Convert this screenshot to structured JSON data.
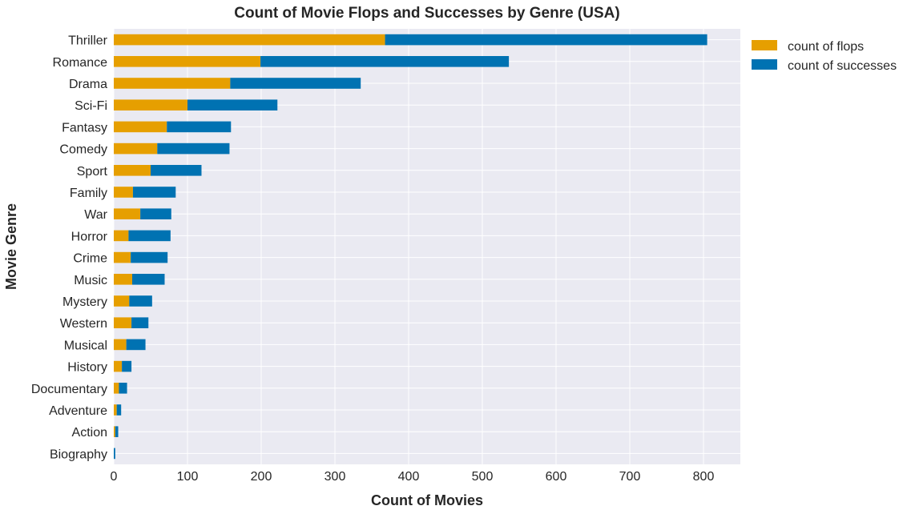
{
  "chart_data": {
    "type": "bar",
    "orientation": "horizontal",
    "stacked": true,
    "title": "Count of Movie Flops and Successes by Genre (USA)",
    "xlabel": "Count of Movies",
    "ylabel": "Movie Genre",
    "xlim": [
      0,
      850
    ],
    "xticks": [
      0,
      100,
      200,
      300,
      400,
      500,
      600,
      700,
      800
    ],
    "grid": true,
    "legend_position": "outside top-right",
    "categories": [
      "Thriller",
      "Romance",
      "Drama",
      "Sci-Fi",
      "Fantasy",
      "Comedy",
      "Sport",
      "Family",
      "War",
      "Horror",
      "Crime",
      "Music",
      "Mystery",
      "Western",
      "Musical",
      "History",
      "Documentary",
      "Adventure",
      "Action",
      "Biography"
    ],
    "series": [
      {
        "name": "count of flops",
        "color": "#E69F00",
        "values": [
          368,
          199,
          158,
          100,
          72,
          59,
          50,
          26,
          36,
          20,
          23,
          25,
          21,
          24,
          17,
          11,
          7,
          4,
          2,
          0
        ]
      },
      {
        "name": "count of successes",
        "color": "#0072B2",
        "values": [
          437,
          337,
          177,
          122,
          87,
          98,
          69,
          58,
          42,
          57,
          50,
          44,
          31,
          23,
          26,
          13,
          11,
          6,
          4,
          2
        ]
      }
    ]
  },
  "colors": {
    "plot_background": "#EAEAF2",
    "grid": "#FFFFFF",
    "text": "#262626"
  }
}
